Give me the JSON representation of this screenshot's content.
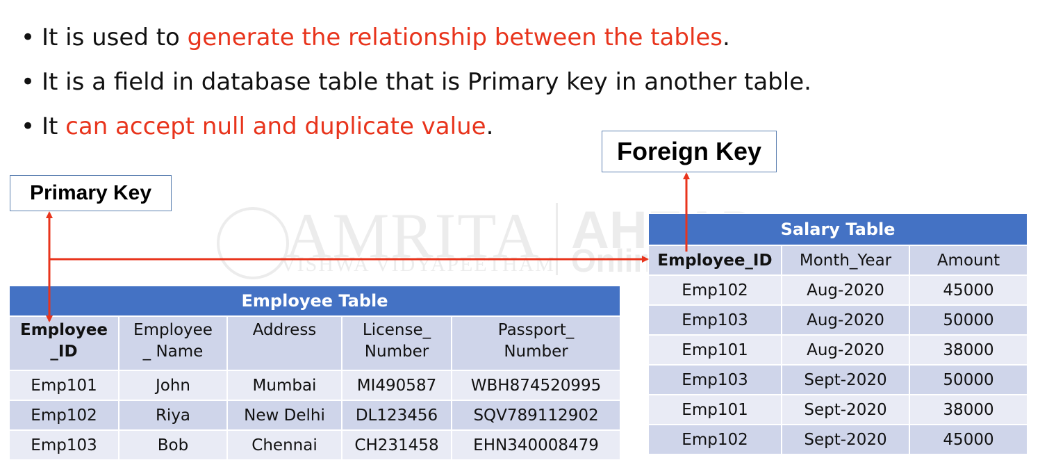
{
  "bullets": [
    {
      "plain": "It is used to ",
      "red": "generate the relationship between the tables",
      "tail": "."
    },
    {
      "plain": "It is a field in database table that is Primary key in another table.",
      "red": "",
      "tail": ""
    },
    {
      "plain": "It ",
      "red": "can accept null and duplicate value",
      "tail": "."
    }
  ],
  "watermark": {
    "name": "AMRITA",
    "subtitle": "VISHWA VIDYAPEETHAM",
    "brand": "AHEAD",
    "brand_sub": "Online"
  },
  "primary_key_label": "Primary Key",
  "foreign_key_label": "Foreign Key",
  "employee_table": {
    "title": "Employee Table",
    "headers": [
      [
        "Employee",
        "_ID"
      ],
      [
        "Employee",
        "_ Name"
      ],
      [
        "Address",
        ""
      ],
      [
        "License_",
        "Number"
      ],
      [
        "Passport_",
        "Number"
      ]
    ],
    "rows": [
      [
        "Emp101",
        "John",
        "Mumbai",
        "MI490587",
        "WBH874520995"
      ],
      [
        "Emp102",
        "Riya",
        "New Delhi",
        "DL123456",
        "SQV789112902"
      ],
      [
        "Emp103",
        "Bob",
        "Chennai",
        "CH231458",
        "EHN340008479"
      ]
    ]
  },
  "salary_table": {
    "title": "Salary Table",
    "headers": [
      "Employee_ID",
      "Month_Year",
      "Amount"
    ],
    "rows": [
      [
        "Emp102",
        "Aug-2020",
        "45000"
      ],
      [
        "Emp103",
        "Aug-2020",
        "50000"
      ],
      [
        "Emp101",
        "Aug-2020",
        "38000"
      ],
      [
        "Emp103",
        "Sept-2020",
        "50000"
      ],
      [
        "Emp101",
        "Sept-2020",
        "38000"
      ],
      [
        "Emp102",
        "Sept-2020",
        "45000"
      ]
    ]
  },
  "colors": {
    "highlight_text": "#e8341c",
    "arrow": "#e8341c",
    "table_header": "#4472c4",
    "row_dark": "#cfd5ea",
    "row_light": "#e9ebf5"
  }
}
